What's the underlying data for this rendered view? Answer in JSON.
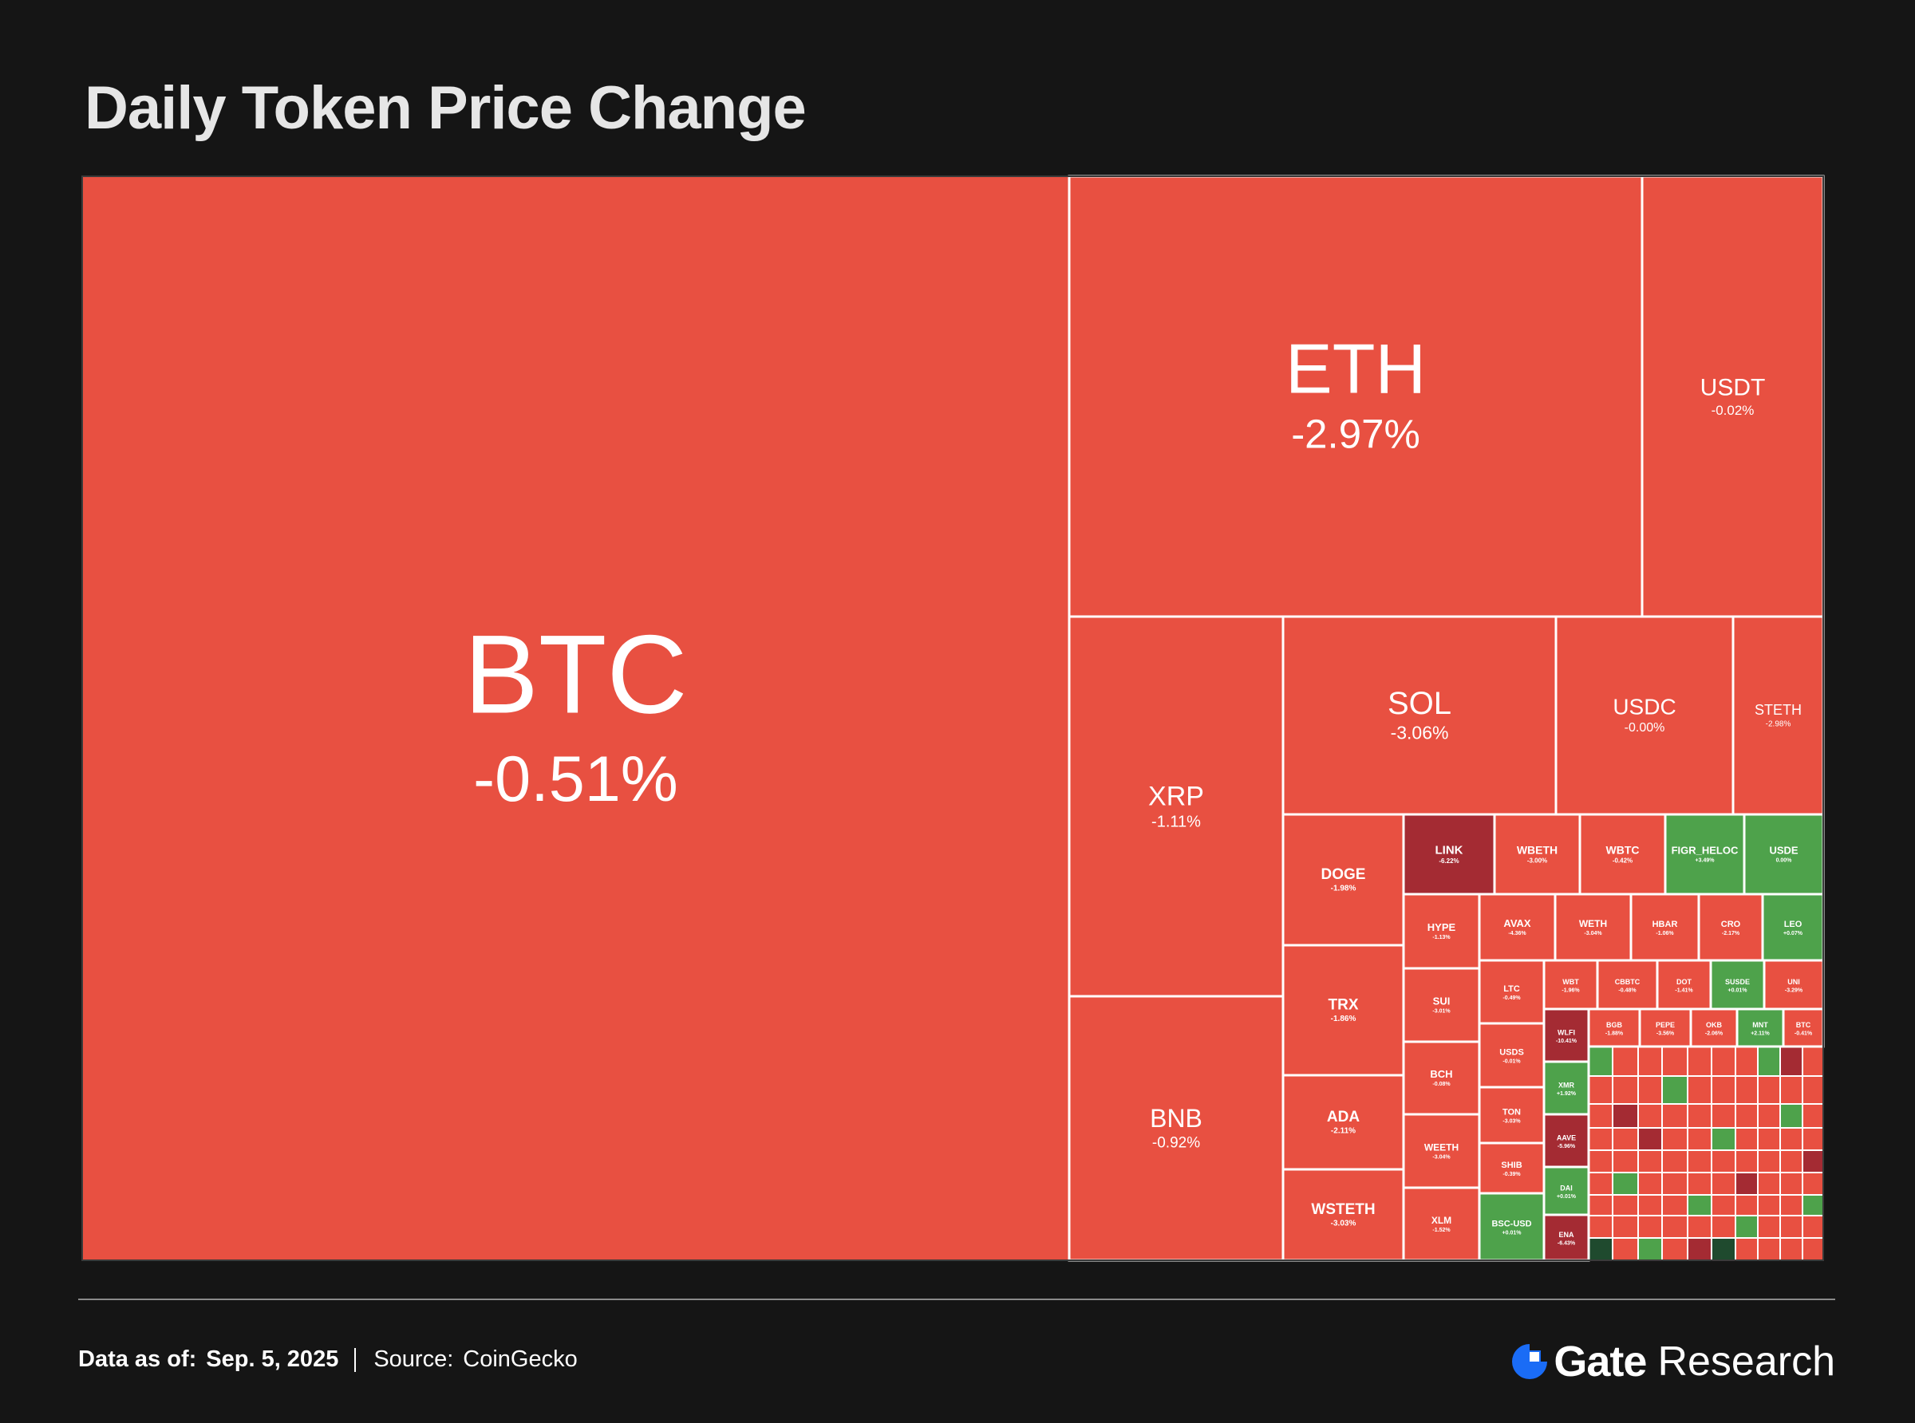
{
  "title": "Daily Token Price Change",
  "footer": {
    "data_label": "Data as of:",
    "data_value": "Sep. 5, 2025",
    "source_label": "Source:",
    "source_value": "CoinGecko"
  },
  "brand": {
    "name": "Gate",
    "suffix": "Research",
    "icon": "gate-logo-icon"
  },
  "colors": {
    "negative": "#e85041",
    "strong_negative": "#a42b33",
    "positive": "#4ea24b",
    "strong_positive": "#1f4a2e",
    "background": "#151515",
    "border": "#ffffff"
  },
  "chart_data": {
    "type": "treemap",
    "title": "Daily Token Price Change",
    "tiles": [
      {
        "label": "BTC",
        "change": "-0.51%"
      },
      {
        "label": "ETH",
        "change": "-2.97%"
      },
      {
        "label": "USDT",
        "change": "-0.02%"
      },
      {
        "label": "XRP",
        "change": "-1.11%"
      },
      {
        "label": "BNB",
        "change": "-0.92%"
      },
      {
        "label": "SOL",
        "change": "-3.06%"
      },
      {
        "label": "USDC",
        "change": "-0.00%"
      },
      {
        "label": "STETH",
        "change": "-2.98%"
      },
      {
        "label": "DOGE",
        "change": "-1.98%"
      },
      {
        "label": "TRX",
        "change": "-1.86%"
      },
      {
        "label": "ADA",
        "change": "-2.11%"
      },
      {
        "label": "WSTETH",
        "change": "-3.03%"
      },
      {
        "label": "LINK",
        "change": "-6.22%"
      },
      {
        "label": "WBETH",
        "change": "-3.00%"
      },
      {
        "label": "WBTC",
        "change": "-0.42%"
      },
      {
        "label": "FIGR_HELOC",
        "change": "+3.49%"
      },
      {
        "label": "USDE",
        "change": "0.00%"
      },
      {
        "label": "HYPE",
        "change": "-1.13%"
      },
      {
        "label": "SUI",
        "change": "-3.01%"
      },
      {
        "label": "BCH",
        "change": "-0.08%"
      },
      {
        "label": "WEETH",
        "change": "-3.04%"
      },
      {
        "label": "XLM",
        "change": "-1.52%"
      },
      {
        "label": "AVAX",
        "change": "-4.36%"
      },
      {
        "label": "WETH",
        "change": "-3.04%"
      },
      {
        "label": "HBAR",
        "change": "-1.06%"
      },
      {
        "label": "CRO",
        "change": "-2.17%"
      },
      {
        "label": "LEO",
        "change": "+0.07%"
      },
      {
        "label": "LTC",
        "change": "-0.49%"
      },
      {
        "label": "USDS",
        "change": "-0.01%"
      },
      {
        "label": "TON",
        "change": "-3.03%"
      },
      {
        "label": "SHIB",
        "change": "-0.39%"
      },
      {
        "label": "BSC-USD",
        "change": "+0.01%"
      },
      {
        "label": "WBT",
        "change": "-1.96%"
      },
      {
        "label": "CBBTC",
        "change": "-0.48%"
      },
      {
        "label": "DOT",
        "change": "-1.41%"
      },
      {
        "label": "SUSDE",
        "change": "+0.01%"
      },
      {
        "label": "UNI",
        "change": "-3.29%"
      },
      {
        "label": "WLFI",
        "change": "-10.41%"
      },
      {
        "label": "BGB",
        "change": "-1.88%"
      },
      {
        "label": "PEPE",
        "change": "-3.56%"
      },
      {
        "label": "OKB",
        "change": "-2.06%"
      },
      {
        "label": "MNT",
        "change": "+2.11%"
      },
      {
        "label": "BTC",
        "change": "-0.41%"
      },
      {
        "label": "XMR",
        "change": "+1.92%"
      },
      {
        "label": "AAVE",
        "change": "-5.96%"
      },
      {
        "label": "DAI",
        "change": "+0.01%"
      },
      {
        "label": "ENA",
        "change": "-6.43%"
      }
    ]
  }
}
